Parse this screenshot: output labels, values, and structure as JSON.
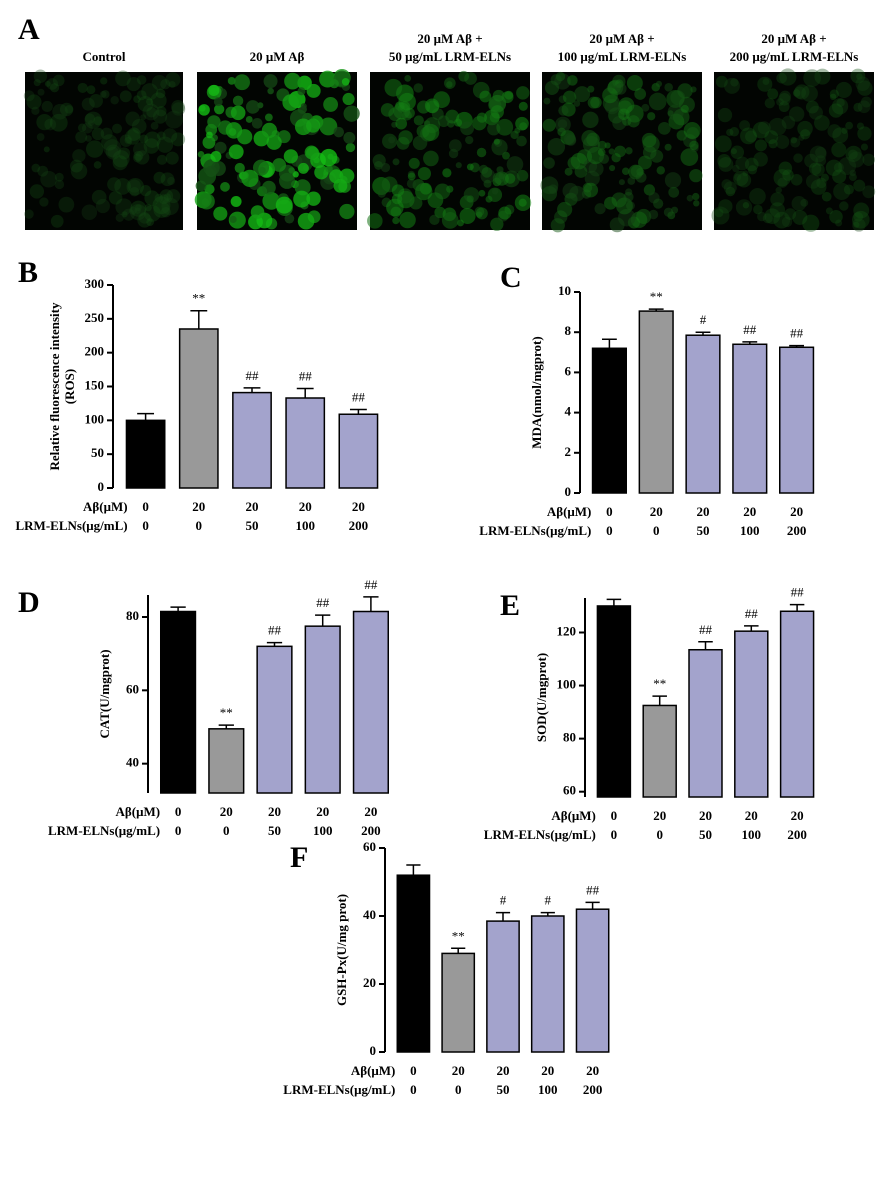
{
  "panel_a": {
    "letter": "A",
    "labels": [
      [
        "Control"
      ],
      [
        "20 μM Aβ"
      ],
      [
        "20 μM Aβ +",
        "50 μg/mL LRM-ELNs"
      ],
      [
        "20 μM Aβ +",
        "100 μg/mL LRM-ELNs"
      ],
      [
        "20 μM Aβ +",
        "200 μg/mL LRM-ELNs"
      ]
    ]
  },
  "chart_data": [
    {
      "type": "bar",
      "letter": "B",
      "ylabel": [
        "Relative fluorescence intensity",
        "(ROS)"
      ],
      "ylim": [
        0,
        300
      ],
      "yticks": [
        0,
        50,
        100,
        150,
        200,
        250,
        300
      ],
      "category_rows": [
        {
          "name": "Aβ(μM)",
          "categories": [
            "0",
            "20",
            "20",
            "20",
            "20"
          ]
        },
        {
          "name": "LRM-ELNs(μg/mL)",
          "categories": [
            "0",
            "0",
            "50",
            "100",
            "200"
          ]
        }
      ],
      "values": [
        100,
        235,
        141,
        133,
        109
      ],
      "errors": [
        10,
        27,
        7,
        14,
        7
      ],
      "annotations": [
        null,
        "**",
        "##",
        "##",
        "##"
      ],
      "colors": [
        "#000000",
        "#999999",
        "#a3a3cc",
        "#a3a3cc",
        "#a3a3cc"
      ]
    },
    {
      "type": "bar",
      "letter": "C",
      "ylabel": [
        "MDA(nmol/mgprot)"
      ],
      "ylim": [
        0,
        10
      ],
      "yticks": [
        0,
        2,
        4,
        6,
        8,
        10
      ],
      "category_rows": [
        {
          "name": "Aβ(μM)",
          "categories": [
            "0",
            "20",
            "20",
            "20",
            "20"
          ]
        },
        {
          "name": "LRM-ELNs(μg/mL)",
          "categories": [
            "0",
            "0",
            "50",
            "100",
            "200"
          ]
        }
      ],
      "values": [
        7.2,
        9.05,
        7.85,
        7.4,
        7.25
      ],
      "errors": [
        0.45,
        0.1,
        0.15,
        0.12,
        0.08
      ],
      "annotations": [
        null,
        "**",
        "#",
        "##",
        "##"
      ],
      "colors": [
        "#000000",
        "#999999",
        "#a3a3cc",
        "#a3a3cc",
        "#a3a3cc"
      ]
    },
    {
      "type": "bar",
      "letter": "D",
      "ylabel": [
        "CAT(U/mgprot)"
      ],
      "ylim": [
        32,
        86
      ],
      "yticks": [
        40,
        60,
        80
      ],
      "category_rows": [
        {
          "name": "Aβ(μM)",
          "categories": [
            "0",
            "20",
            "20",
            "20",
            "20"
          ]
        },
        {
          "name": "LRM-ELNs(μg/mL)",
          "categories": [
            "0",
            "0",
            "50",
            "100",
            "200"
          ]
        }
      ],
      "values": [
        81.5,
        49.5,
        72,
        77.5,
        81.5
      ],
      "errors": [
        1.2,
        1,
        1,
        3,
        4
      ],
      "annotations": [
        null,
        "**",
        "##",
        "##",
        "##"
      ],
      "colors": [
        "#000000",
        "#999999",
        "#a3a3cc",
        "#a3a3cc",
        "#a3a3cc"
      ]
    },
    {
      "type": "bar",
      "letter": "E",
      "ylabel": [
        "SOD(U/mgprot)"
      ],
      "ylim": [
        58,
        133
      ],
      "yticks": [
        60,
        80,
        100,
        120
      ],
      "category_rows": [
        {
          "name": "Aβ(μM)",
          "categories": [
            "0",
            "20",
            "20",
            "20",
            "20"
          ]
        },
        {
          "name": "LRM-ELNs(μg/mL)",
          "categories": [
            "0",
            "0",
            "50",
            "100",
            "200"
          ]
        }
      ],
      "values": [
        130,
        92.5,
        113.5,
        120.5,
        128
      ],
      "errors": [
        2.5,
        3.5,
        3,
        2,
        2.5
      ],
      "annotations": [
        null,
        "**",
        "##",
        "##",
        "##"
      ],
      "colors": [
        "#000000",
        "#999999",
        "#a3a3cc",
        "#a3a3cc",
        "#a3a3cc"
      ]
    },
    {
      "type": "bar",
      "letter": "F",
      "ylabel": [
        "GSH-Px(U/mg prot)"
      ],
      "ylim": [
        0,
        60
      ],
      "yticks": [
        0,
        20,
        40,
        60
      ],
      "category_rows": [
        {
          "name": "Aβ(μM)",
          "categories": [
            "0",
            "20",
            "20",
            "20",
            "20"
          ]
        },
        {
          "name": "LRM-ELNs(μg/mL)",
          "categories": [
            "0",
            "0",
            "50",
            "100",
            "200"
          ]
        }
      ],
      "values": [
        52,
        29,
        38.5,
        40,
        42
      ],
      "errors": [
        3,
        1.5,
        2.5,
        1,
        2
      ],
      "annotations": [
        null,
        "**",
        "#",
        "#",
        "##"
      ],
      "colors": [
        "#000000",
        "#999999",
        "#a3a3cc",
        "#a3a3cc",
        "#a3a3cc"
      ]
    }
  ]
}
